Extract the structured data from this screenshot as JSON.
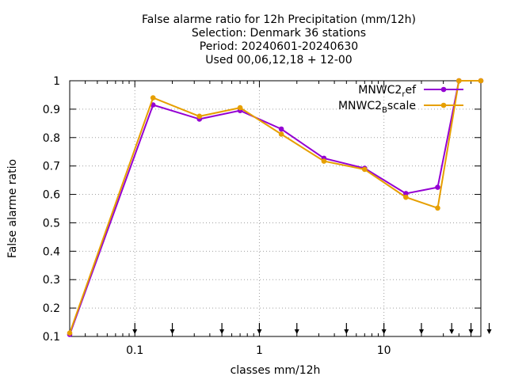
{
  "chart_data": {
    "type": "line",
    "title_lines": [
      "False alarme ratio  for 12h Precipitation (mm/12h)",
      "Selection: Denmark     36 stations",
      "Period: 20240601-20240630",
      "Used 00,06,12,18 + 12-00"
    ],
    "xlabel": "classes mm/12h",
    "ylabel": "False alarme ratio",
    "x_scale": "log",
    "xlim": [
      0.03,
      60
    ],
    "ylim": [
      0.1,
      1.0
    ],
    "x_ticks": [
      {
        "value": 0.1,
        "label": "0.1"
      },
      {
        "value": 1,
        "label": "1"
      },
      {
        "value": 10,
        "label": "10"
      }
    ],
    "y_ticks": [
      {
        "value": 0.1,
        "label": "0.1"
      },
      {
        "value": 0.2,
        "label": "0.2"
      },
      {
        "value": 0.3,
        "label": "0.3"
      },
      {
        "value": 0.4,
        "label": "0.4"
      },
      {
        "value": 0.5,
        "label": "0.5"
      },
      {
        "value": 0.6,
        "label": "0.6"
      },
      {
        "value": 0.7,
        "label": "0.7"
      },
      {
        "value": 0.8,
        "label": "0.8"
      },
      {
        "value": 0.9,
        "label": "0.9"
      },
      {
        "value": 1.0,
        "label": "1"
      }
    ],
    "threshold_markers": [
      0.1,
      0.2,
      0.5,
      1,
      2,
      5,
      10,
      20,
      35,
      50,
      70
    ],
    "grid": true,
    "legend_position": "top-right",
    "series": [
      {
        "name_base": "MNWC2",
        "name_sub": "r",
        "name_rest": "ef",
        "color": "#9400d3",
        "x": [
          0.03,
          0.14,
          0.33,
          0.7,
          1.5,
          3.3,
          7,
          15,
          27,
          40,
          60
        ],
        "y": [
          0.107,
          0.915,
          0.865,
          0.895,
          0.83,
          0.727,
          0.692,
          0.603,
          0.625,
          1.0,
          1.0
        ]
      },
      {
        "name_base": "MNWC2",
        "name_sub": "B",
        "name_rest": "scale",
        "color": "#e69f00",
        "x": [
          0.03,
          0.14,
          0.33,
          0.7,
          1.5,
          3.3,
          7,
          15,
          27,
          40,
          60
        ],
        "y": [
          0.112,
          0.94,
          0.875,
          0.905,
          0.812,
          0.717,
          0.688,
          0.59,
          0.552,
          1.0,
          1.0
        ]
      }
    ]
  }
}
